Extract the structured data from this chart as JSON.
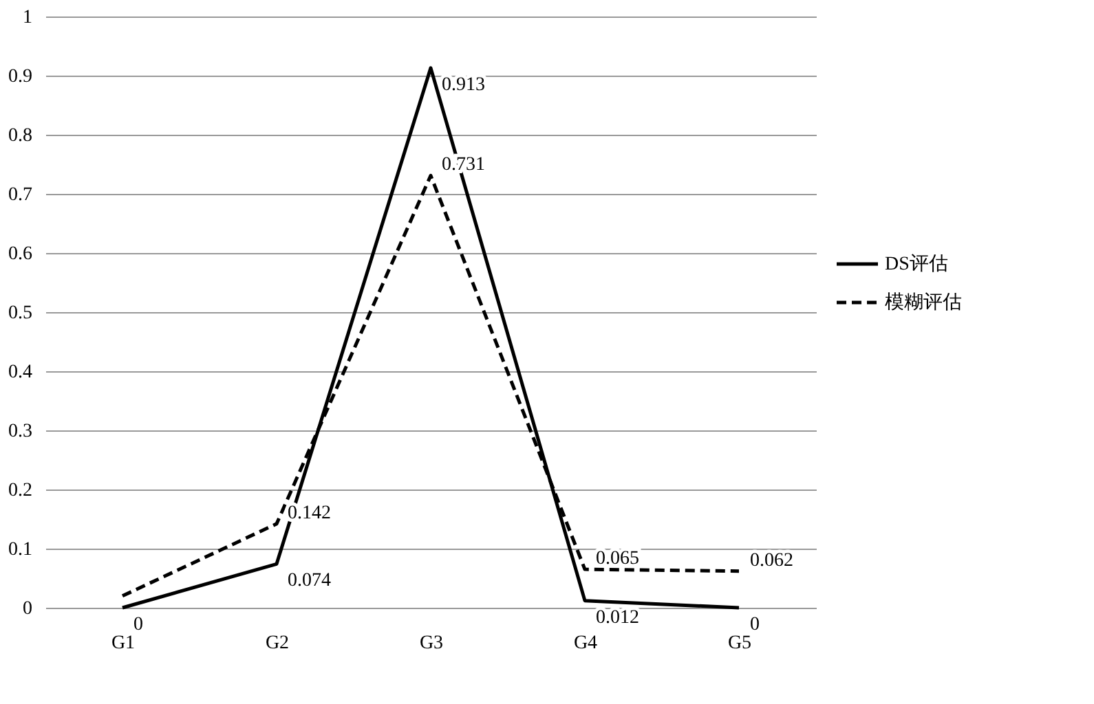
{
  "chart_data": {
    "type": "line",
    "categories": [
      "G1",
      "G2",
      "G3",
      "G4",
      "G5"
    ],
    "series": [
      {
        "name": "DS评估",
        "color": "#000000",
        "line_style": "solid",
        "values": [
          0,
          0.074,
          0.913,
          0.012,
          0
        ],
        "value_labels": [
          "0",
          "0.074",
          "0.913",
          "0.012",
          "0"
        ]
      },
      {
        "name": "模糊评估",
        "color": "#000000",
        "line_style": "dashed",
        "values": [
          0.02,
          0.142,
          0.731,
          0.065,
          0.062
        ],
        "value_labels": [
          null,
          "0.142",
          "0.731",
          "0.065",
          "0.062"
        ]
      }
    ],
    "ylim": [
      0,
      1
    ],
    "yticks": [
      0,
      0.1,
      0.2,
      0.3,
      0.4,
      0.5,
      0.6,
      0.7,
      0.8,
      0.9,
      1
    ],
    "grid": "y",
    "legend": "right",
    "marker": "none"
  }
}
